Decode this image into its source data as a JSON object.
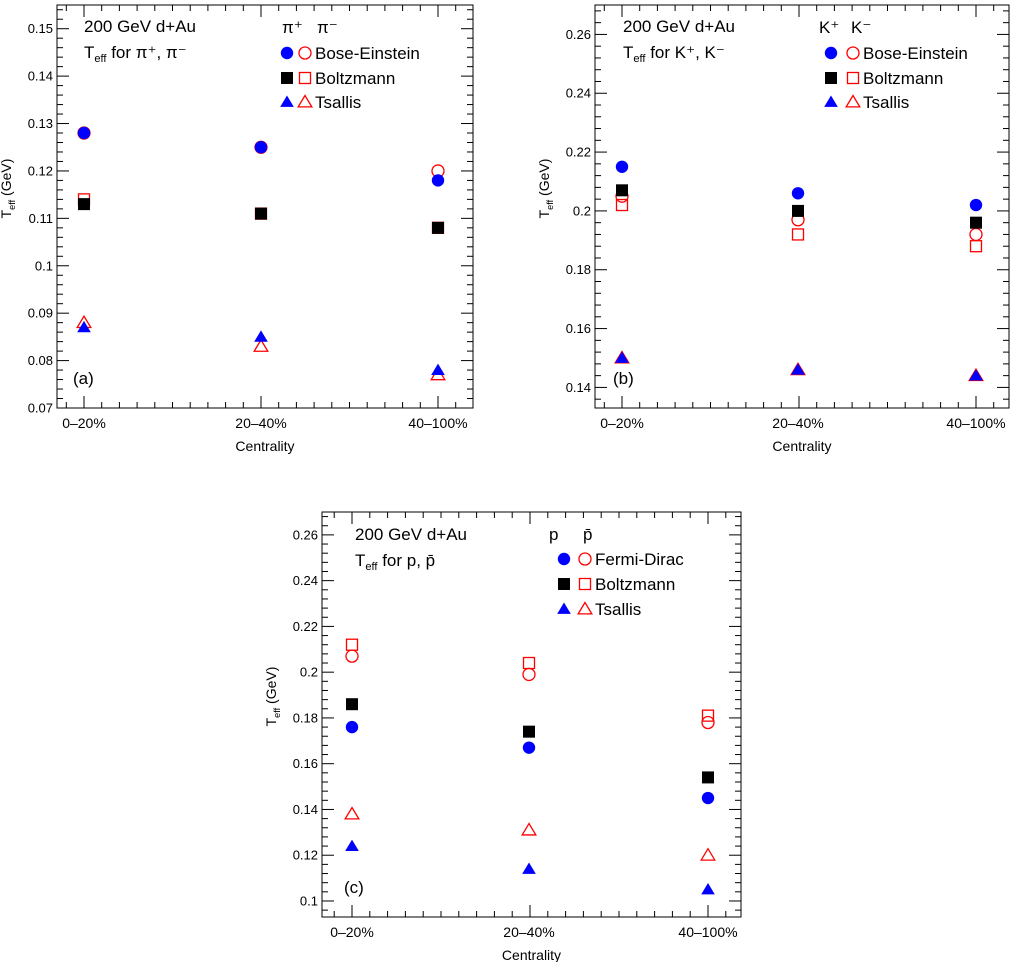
{
  "colors": {
    "particle": "#0000ff",
    "antiparticle": "#ff0000",
    "boltzmann": "#000000"
  },
  "chart_data": [
    {
      "type": "scatter",
      "panel_label": "(a)",
      "annotation": [
        "200 GeV d+Au",
        "T_eff for π⁺, π⁻"
      ],
      "ylabel": "T_eff (GeV)",
      "xlabel": "Centrality",
      "categories": [
        "0–20%",
        "20–40%",
        "40–100%"
      ],
      "ylim": [
        0.07,
        0.155
      ],
      "yticks": [
        "0.07",
        "0.08",
        "0.09",
        "0.1",
        "0.11",
        "0.12",
        "0.13",
        "0.14",
        "0.15"
      ],
      "legend_header": [
        "π⁺",
        "π⁻"
      ],
      "grid": false,
      "legend_position": "top-right",
      "series": [
        {
          "name": "Bose-Einstein",
          "particle": [
            0.128,
            0.125,
            0.118
          ],
          "antiparticle": [
            0.128,
            0.125,
            0.12
          ],
          "marker": "circle"
        },
        {
          "name": "Boltzmann",
          "particle": [
            0.113,
            0.111,
            0.108
          ],
          "antiparticle": [
            0.114,
            0.111,
            0.108
          ],
          "marker": "square"
        },
        {
          "name": "Tsallis",
          "particle": [
            0.087,
            0.085,
            0.078
          ],
          "antiparticle": [
            0.088,
            0.083,
            0.077
          ],
          "marker": "triangle"
        }
      ]
    },
    {
      "type": "scatter",
      "panel_label": "(b)",
      "annotation": [
        "200 GeV d+Au",
        "T_eff for K⁺, K⁻"
      ],
      "ylabel": "T_eff (GeV)",
      "xlabel": "Centrality",
      "categories": [
        "0–20%",
        "20–40%",
        "40–100%"
      ],
      "ylim": [
        0.133,
        0.27
      ],
      "yticks": [
        "0.14",
        "0.16",
        "0.18",
        "0.2",
        "0.22",
        "0.24",
        "0.26"
      ],
      "legend_header": [
        "K⁺",
        "K⁻"
      ],
      "grid": false,
      "legend_position": "top-right",
      "series": [
        {
          "name": "Bose-Einstein",
          "particle": [
            0.215,
            0.206,
            0.202
          ],
          "antiparticle": [
            0.205,
            0.197,
            0.192
          ],
          "marker": "circle"
        },
        {
          "name": "Boltzmann",
          "particle": [
            0.207,
            0.2,
            0.196
          ],
          "antiparticle": [
            0.202,
            0.192,
            0.188
          ],
          "marker": "square"
        },
        {
          "name": "Tsallis",
          "particle": [
            0.15,
            0.146,
            0.144
          ],
          "antiparticle": [
            0.15,
            0.146,
            0.144
          ],
          "marker": "triangle"
        }
      ]
    },
    {
      "type": "scatter",
      "panel_label": "(c)",
      "annotation": [
        "200 GeV d+Au",
        "T_eff for p, p̄"
      ],
      "ylabel": "T_eff (GeV)",
      "xlabel": "Centrality",
      "categories": [
        "0–20%",
        "20–40%",
        "40–100%"
      ],
      "ylim": [
        0.093,
        0.27
      ],
      "yticks": [
        "0.1",
        "0.12",
        "0.14",
        "0.16",
        "0.18",
        "0.2",
        "0.22",
        "0.24",
        "0.26"
      ],
      "legend_header": [
        "p",
        "p̄"
      ],
      "grid": false,
      "legend_position": "top-right",
      "series": [
        {
          "name": "Fermi-Dirac",
          "particle": [
            0.176,
            0.167,
            0.145
          ],
          "antiparticle": [
            0.207,
            0.199,
            0.178
          ],
          "marker": "circle"
        },
        {
          "name": "Boltzmann",
          "particle": [
            0.186,
            0.174,
            0.154
          ],
          "antiparticle": [
            0.212,
            0.204,
            0.181
          ],
          "marker": "square"
        },
        {
          "name": "Tsallis",
          "particle": [
            0.124,
            0.114,
            0.105
          ],
          "antiparticle": [
            0.138,
            0.131,
            0.12
          ],
          "marker": "triangle"
        }
      ]
    }
  ]
}
